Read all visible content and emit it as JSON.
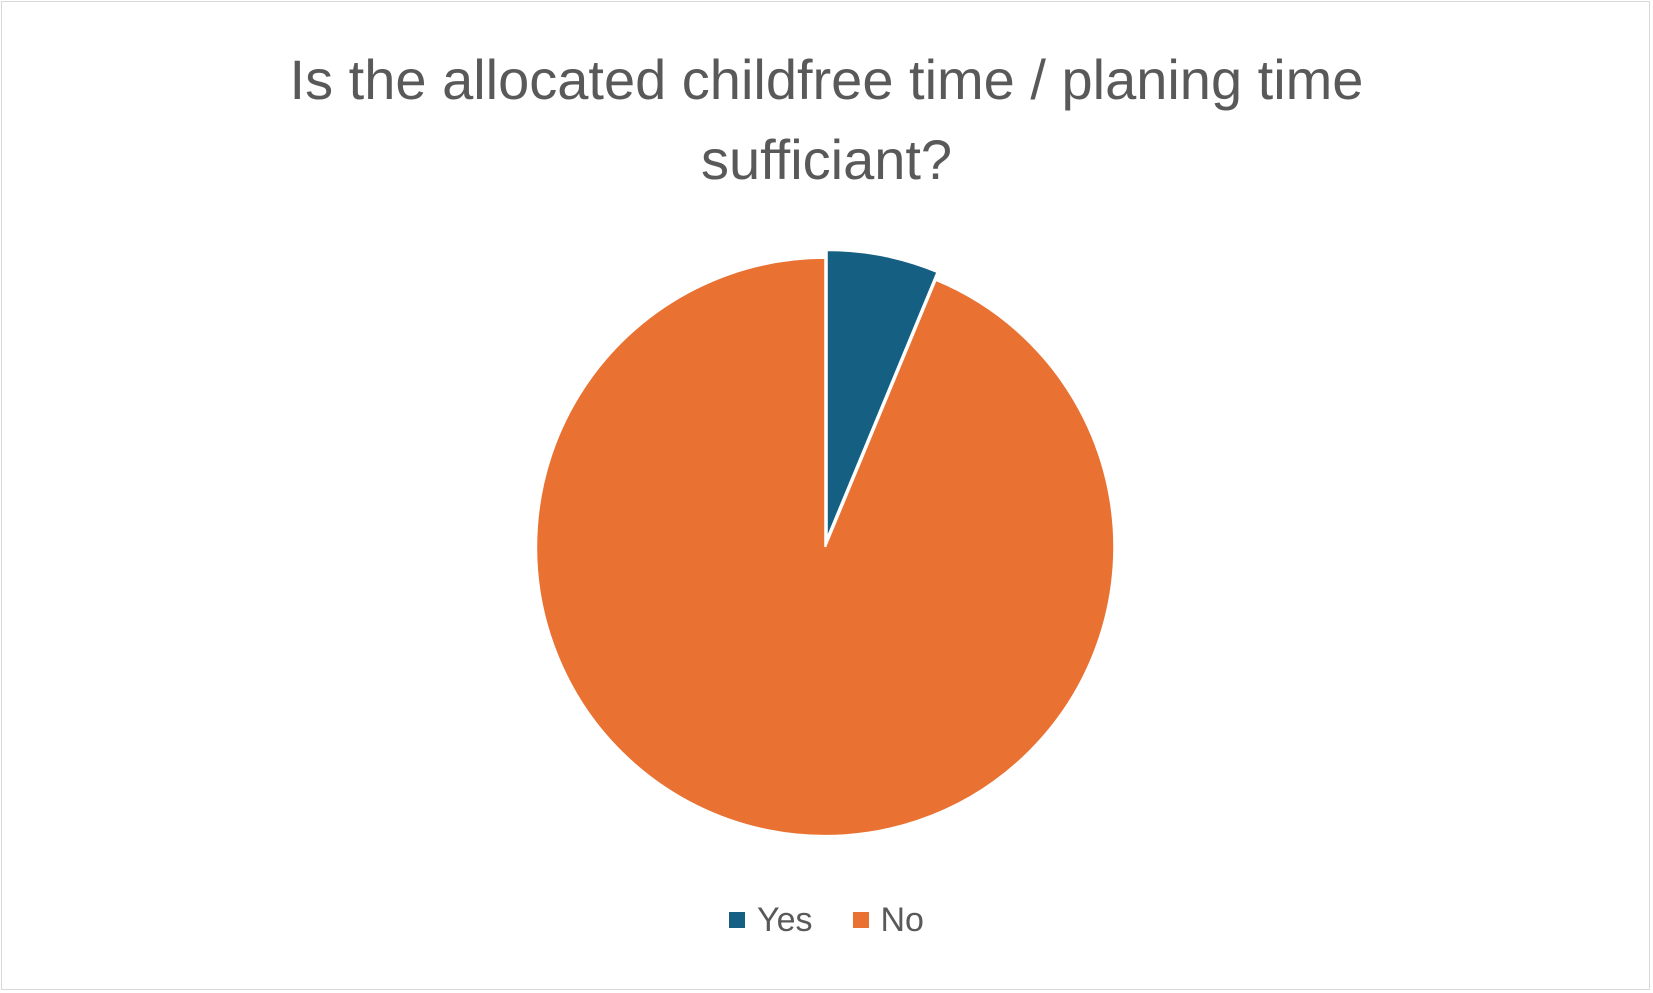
{
  "chart_data": {
    "type": "pie",
    "title": "Is the allocated childfree time / planing time sufficiant?",
    "categories": [
      "Yes",
      "No"
    ],
    "values": [
      6.25,
      93.75
    ],
    "colors": [
      "#156082",
      "#E97132"
    ],
    "legend_position": "bottom",
    "start_angle_deg": 0,
    "direction": "clockwise",
    "slice_border_color": "#ffffff"
  }
}
